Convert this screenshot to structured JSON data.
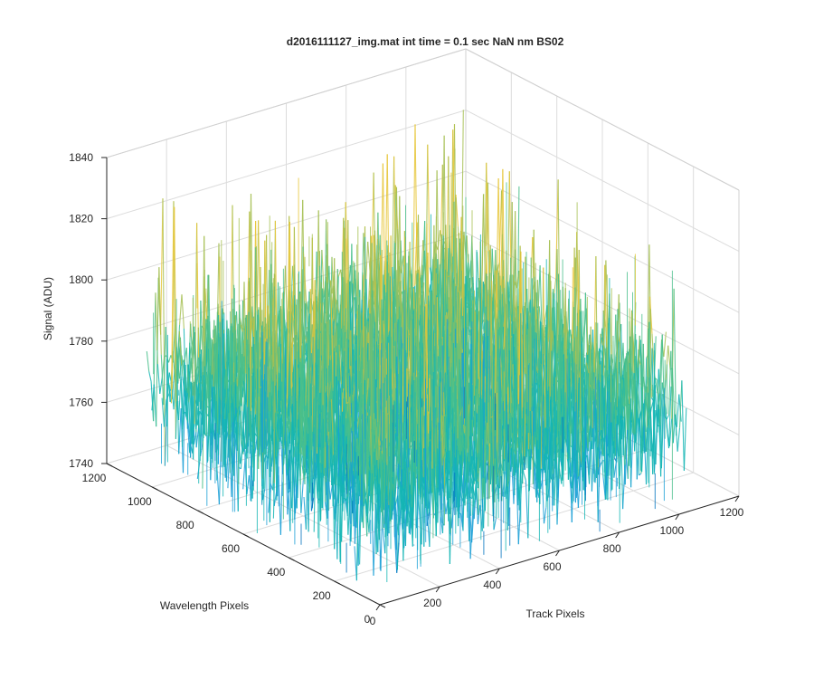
{
  "chart_data": {
    "type": "surface",
    "title": "d2016111127_img.mat int time = 0.1 sec  NaN nm BS02",
    "xlabel": "Track Pixels",
    "ylabel": "Wavelength Pixels",
    "zlabel": "Signal (ADU)",
    "xlim": [
      0,
      1200
    ],
    "ylim": [
      0,
      1200
    ],
    "zlim": [
      1740,
      1840
    ],
    "xticks": [
      "0",
      "200",
      "400",
      "600",
      "800",
      "1000",
      "1200"
    ],
    "yticks": [
      "0",
      "200",
      "400",
      "600",
      "800",
      "1000",
      "1200"
    ],
    "zticks": [
      "1740",
      "1760",
      "1780",
      "1800",
      "1820",
      "1840"
    ],
    "data_extent": {
      "x": [
        0,
        1024
      ],
      "y": [
        0,
        1024
      ]
    },
    "typical_range": [
      1755,
      1805
    ],
    "mean_value": 1775,
    "peak_max": 1838,
    "trough_min": 1742,
    "grid": true,
    "colormap": "parula",
    "colors": [
      "#0072bd",
      "#1a9fd6",
      "#14b5b4",
      "#49bf8b",
      "#a6c053",
      "#e6c637"
    ]
  }
}
